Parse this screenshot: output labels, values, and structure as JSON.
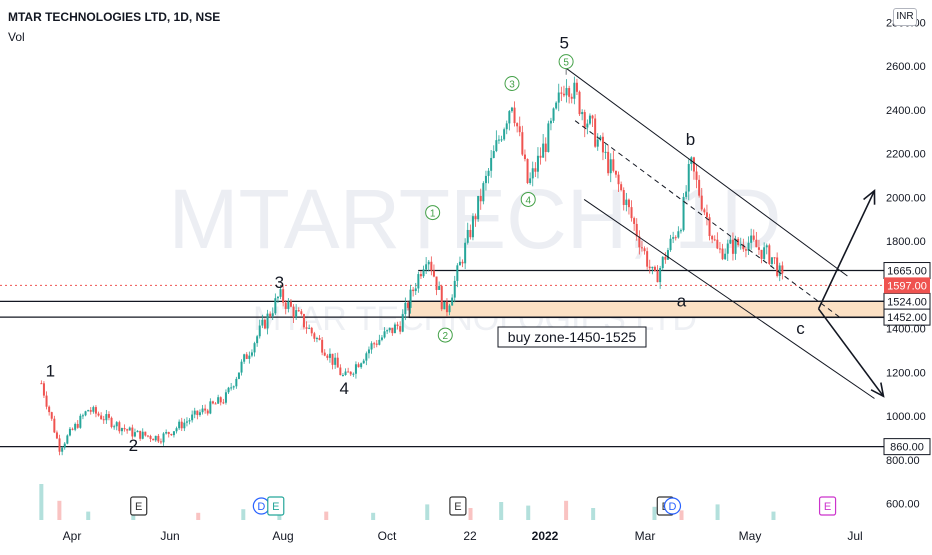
{
  "header": {
    "title": "MTAR TECHNOLOGIES LTD, 1D, NSE",
    "volume_label": "Vol",
    "currency": "INR"
  },
  "watermark": {
    "main": "MTARTECH, 1D",
    "sub": "MTAR TECHNOLOGIES LTD"
  },
  "colors": {
    "up": "#26a69a",
    "down": "#ef5350",
    "line": "#131722",
    "zone_fill": "#fbe0c4",
    "price_tag": "#ef5350"
  },
  "chart_data": {
    "type": "candlestick",
    "title": "MTAR TECHNOLOGIES LTD, 1D, NSE",
    "x_tick_labels": [
      "Apr",
      "Jun",
      "Aug",
      "Oct",
      "22",
      "2022",
      "Mar",
      "May",
      "Jul"
    ],
    "y_tick_labels": [
      "2800.00",
      "2600.00",
      "2400.00",
      "2200.00",
      "2000.00",
      "1800.00",
      "1600.00",
      "1400.00",
      "1200.00",
      "1000.00",
      "800.00",
      "600.00"
    ],
    "ylim": [
      600,
      2800
    ],
    "price_path": [
      {
        "date": "2021-03-15",
        "price": 1150
      },
      {
        "date": "2021-03-25",
        "price": 855
      },
      {
        "date": "2021-04-10",
        "price": 1030
      },
      {
        "date": "2021-05-05",
        "price": 920
      },
      {
        "date": "2021-05-20",
        "price": 900
      },
      {
        "date": "2021-06-10",
        "price": 1010
      },
      {
        "date": "2021-06-25",
        "price": 1080
      },
      {
        "date": "2021-07-05",
        "price": 1250
      },
      {
        "date": "2021-07-25",
        "price": 1550
      },
      {
        "date": "2021-08-05",
        "price": 1450
      },
      {
        "date": "2021-08-20",
        "price": 1300
      },
      {
        "date": "2021-08-30",
        "price": 1170
      },
      {
        "date": "2021-09-15",
        "price": 1330
      },
      {
        "date": "2021-09-30",
        "price": 1420
      },
      {
        "date": "2021-10-15",
        "price": 1750
      },
      {
        "date": "2021-10-25",
        "price": 1470
      },
      {
        "date": "2021-11-08",
        "price": 1850
      },
      {
        "date": "2021-11-25",
        "price": 2300
      },
      {
        "date": "2021-12-01",
        "price": 2450
      },
      {
        "date": "2021-12-10",
        "price": 2050
      },
      {
        "date": "2021-12-22",
        "price": 2300
      },
      {
        "date": "2021-12-31",
        "price": 2550
      },
      {
        "date": "2022-01-15",
        "price": 2300
      },
      {
        "date": "2022-02-01",
        "price": 2000
      },
      {
        "date": "2022-02-18",
        "price": 1620
      },
      {
        "date": "2022-03-05",
        "price": 1900
      },
      {
        "date": "2022-03-10",
        "price": 2150
      },
      {
        "date": "2022-03-25",
        "price": 1750
      },
      {
        "date": "2022-04-10",
        "price": 1800
      },
      {
        "date": "2022-04-25",
        "price": 1720
      },
      {
        "date": "2022-05-01",
        "price": 1597
      }
    ],
    "volume": [
      {
        "date": "2021-03-15",
        "v": 3.0
      },
      {
        "date": "2021-03-25",
        "v": 1.6
      },
      {
        "date": "2021-04-10",
        "v": 0.7
      },
      {
        "date": "2021-05-05",
        "v": 0.5
      },
      {
        "date": "2021-06-10",
        "v": 0.6
      },
      {
        "date": "2021-07-05",
        "v": 0.9
      },
      {
        "date": "2021-07-25",
        "v": 1.8
      },
      {
        "date": "2021-08-20",
        "v": 0.7
      },
      {
        "date": "2021-09-15",
        "v": 0.6
      },
      {
        "date": "2021-10-15",
        "v": 1.3
      },
      {
        "date": "2021-11-08",
        "v": 1.0
      },
      {
        "date": "2021-11-25",
        "v": 1.5
      },
      {
        "date": "2021-12-10",
        "v": 1.2
      },
      {
        "date": "2021-12-31",
        "v": 1.6
      },
      {
        "date": "2022-01-15",
        "v": 1.0
      },
      {
        "date": "2022-02-18",
        "v": 1.1
      },
      {
        "date": "2022-03-05",
        "v": 0.8
      },
      {
        "date": "2022-03-25",
        "v": 1.3
      },
      {
        "date": "2022-04-25",
        "v": 0.7
      }
    ],
    "horizontal_levels": [
      {
        "value": 1665,
        "label": "1665.00"
      },
      {
        "value": 1524,
        "label": "1524.00"
      },
      {
        "value": 1452,
        "label": "1452.00"
      },
      {
        "value": 860,
        "label": "860.00"
      }
    ],
    "last_price": {
      "value": 1597,
      "label": "1597.00"
    },
    "buy_zone": {
      "low": 1450,
      "high": 1525,
      "from": "2021-10-05",
      "to": "2022-05-31",
      "label": "buy zone-1450-1525"
    },
    "wave_labels": [
      {
        "text": "1",
        "date": "2021-03-20",
        "price": 1180
      },
      {
        "text": "2",
        "date": "2021-05-05",
        "price": 840
      },
      {
        "text": "3",
        "date": "2021-07-25",
        "price": 1585
      },
      {
        "text": "4",
        "date": "2021-08-30",
        "price": 1100
      },
      {
        "text": "5",
        "date": "2021-12-30",
        "price": 2680
      },
      {
        "text": "a",
        "date": "2022-03-05",
        "price": 1500
      },
      {
        "text": "b",
        "date": "2022-03-10",
        "price": 2240
      },
      {
        "text": "c",
        "date": "2022-05-10",
        "price": 1375
      }
    ],
    "circled_labels": [
      {
        "text": "1",
        "date": "2021-10-18",
        "price": 1930
      },
      {
        "text": "2",
        "date": "2021-10-25",
        "price": 1370
      },
      {
        "text": "3",
        "date": "2021-12-01",
        "price": 2520
      },
      {
        "text": "4",
        "date": "2021-12-10",
        "price": 1990
      },
      {
        "text": "5",
        "date": "2021-12-31",
        "price": 2620
      }
    ],
    "earnings_markers": [
      {
        "type": "E",
        "date": "2021-05-08",
        "color": "#333333"
      },
      {
        "type": "D",
        "date": "2021-07-15",
        "color": "#2962ff"
      },
      {
        "type": "E",
        "date": "2021-07-23",
        "color": "#26a69a"
      },
      {
        "type": "E",
        "date": "2021-11-01",
        "color": "#333333"
      },
      {
        "type": "E",
        "date": "2022-02-24",
        "color": "#333333"
      },
      {
        "type": "D",
        "date": "2022-02-28",
        "color": "#2962ff"
      },
      {
        "type": "E",
        "date": "2022-05-25",
        "color": "#cc33cc"
      }
    ],
    "channel": {
      "upper": [
        {
          "date": "2021-12-31",
          "price": 2590
        },
        {
          "date": "2022-06-05",
          "price": 1640
        }
      ],
      "middle": [
        {
          "date": "2022-01-05",
          "price": 2350
        },
        {
          "date": "2022-06-01",
          "price": 1450
        }
      ],
      "lower": [
        {
          "date": "2022-01-10",
          "price": 1990
        },
        {
          "date": "2022-06-20",
          "price": 1080
        }
      ]
    },
    "projection_arrows": [
      {
        "from": {
          "date": "2022-05-20",
          "price": 1490
        },
        "to": {
          "date": "2022-06-20",
          "price": 2030
        }
      },
      {
        "from": {
          "date": "2022-05-20",
          "price": 1490
        },
        "to": {
          "date": "2022-06-25",
          "price": 1090
        }
      }
    ],
    "grid": false,
    "legend": "none"
  }
}
